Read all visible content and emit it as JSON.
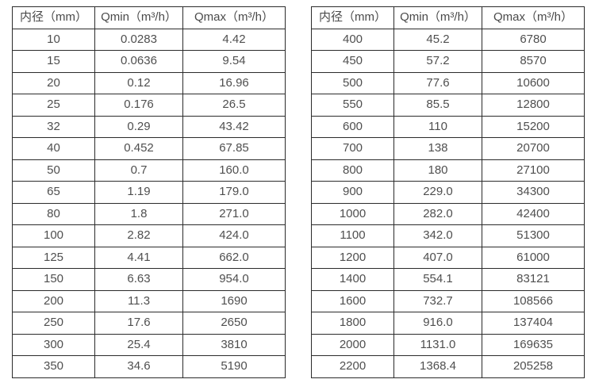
{
  "tables": [
    {
      "name": "flow-spec-table-dn10-350",
      "header": [
        "内径（mm）",
        "Qmin（m³/h）",
        "Qmax（m³/h）"
      ],
      "rows": [
        [
          "10",
          "0.0283",
          "4.42"
        ],
        [
          "15",
          "0.0636",
          "9.54"
        ],
        [
          "20",
          "0.12",
          "16.96"
        ],
        [
          "25",
          "0.176",
          "26.5"
        ],
        [
          "32",
          "0.29",
          "43.42"
        ],
        [
          "40",
          "0.452",
          "67.85"
        ],
        [
          "50",
          "0.7",
          "160.0"
        ],
        [
          "65",
          "1.19",
          "179.0"
        ],
        [
          "80",
          "1.8",
          "271.0"
        ],
        [
          "100",
          "2.82",
          "424.0"
        ],
        [
          "125",
          "4.41",
          "662.0"
        ],
        [
          "150",
          "6.63",
          "954.0"
        ],
        [
          "200",
          "11.3",
          "1690"
        ],
        [
          "250",
          "17.6",
          "2650"
        ],
        [
          "300",
          "25.4",
          "3810"
        ],
        [
          "350",
          "34.6",
          "5190"
        ]
      ]
    },
    {
      "name": "flow-spec-table-dn400-2200",
      "header": [
        "内径（mm）",
        "Qmin（m³/h）",
        "Qmax（m³/h）"
      ],
      "rows": [
        [
          "400",
          "45.2",
          "6780"
        ],
        [
          "450",
          "57.2",
          "8570"
        ],
        [
          "500",
          "77.6",
          "10600"
        ],
        [
          "550",
          "85.5",
          "12800"
        ],
        [
          "600",
          "110",
          "15200"
        ],
        [
          "700",
          "138",
          "20700"
        ],
        [
          "800",
          "180",
          "27100"
        ],
        [
          "900",
          "229.0",
          "34300"
        ],
        [
          "1000",
          "282.0",
          "42400"
        ],
        [
          "1100",
          "342.0",
          "51300"
        ],
        [
          "1200",
          "407.0",
          "61000"
        ],
        [
          "1400",
          "554.1",
          "83121"
        ],
        [
          "1600",
          "732.7",
          "108566"
        ],
        [
          "1800",
          "916.0",
          "137404"
        ],
        [
          "2000",
          "1131.0",
          "169635"
        ],
        [
          "2200",
          "1368.4",
          "205258"
        ]
      ]
    }
  ],
  "colors": {
    "border": "#2b2b2b",
    "text": "#4f4f4f",
    "background": "#ffffff"
  }
}
